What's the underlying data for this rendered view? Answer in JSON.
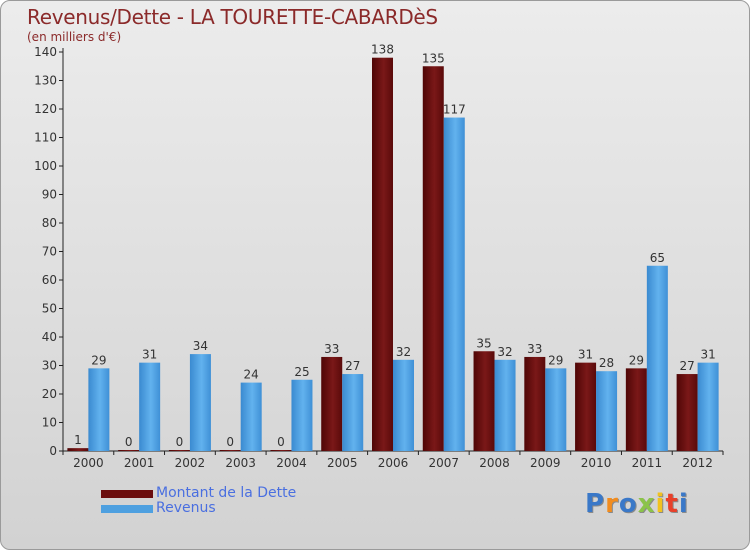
{
  "chart_data": {
    "type": "bar",
    "title": "Revenus/Dette - LA TOURETTE-CABARDèS",
    "subtitle": "(en milliers d'€)",
    "xlabel": "",
    "ylabel": "",
    "ylim": [
      0,
      140
    ],
    "yticks": [
      0,
      10,
      20,
      30,
      40,
      50,
      60,
      70,
      80,
      90,
      100,
      110,
      120,
      130,
      140
    ],
    "grid": false,
    "legend_position": "bottom-left",
    "categories": [
      "2000",
      "2001",
      "2002",
      "2003",
      "2004",
      "2005",
      "2006",
      "2007",
      "2008",
      "2009",
      "2010",
      "2011",
      "2012"
    ],
    "series": [
      {
        "name": "Montant de la Dette",
        "color": "#6b0d0d",
        "values": [
          1,
          0,
          0,
          0,
          0,
          33,
          138,
          135,
          35,
          33,
          31,
          29,
          27
        ]
      },
      {
        "name": "Revenus",
        "color": "#4ea0e0",
        "values": [
          29,
          31,
          34,
          24,
          25,
          27,
          32,
          117,
          32,
          29,
          28,
          65,
          31
        ]
      }
    ]
  },
  "logo": {
    "letters": [
      "P",
      "r",
      "o",
      "x",
      "i",
      "t",
      "i"
    ],
    "colors": [
      "#3a78c8",
      "#f28c1e",
      "#3a78c8",
      "#8bc34a",
      "#f2c21e",
      "#e8402a",
      "#3a78c8"
    ]
  }
}
